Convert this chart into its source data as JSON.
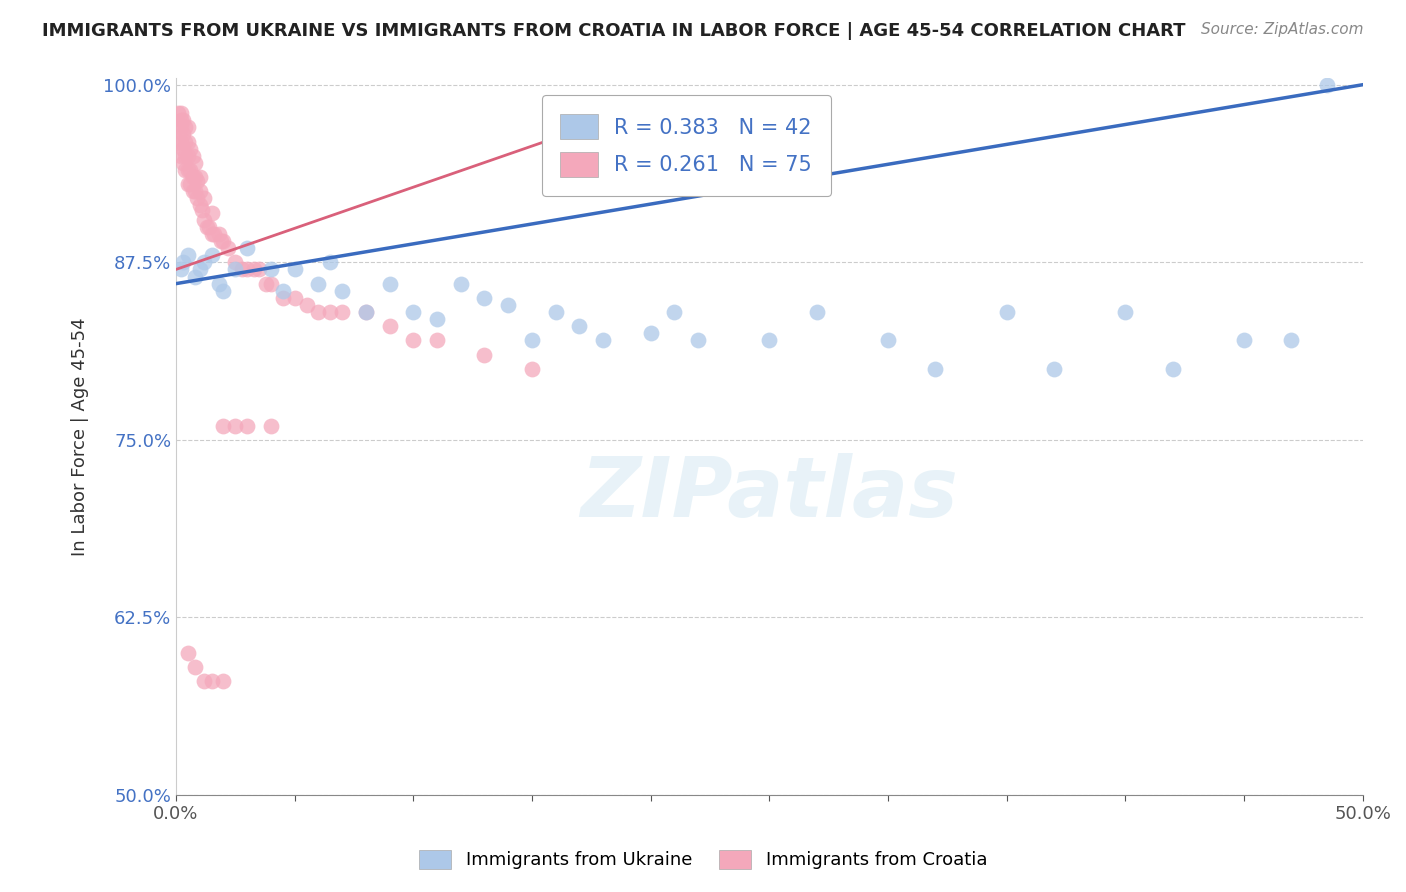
{
  "title": "IMMIGRANTS FROM UKRAINE VS IMMIGRANTS FROM CROATIA IN LABOR FORCE | AGE 45-54 CORRELATION CHART",
  "source": "Source: ZipAtlas.com",
  "ylabel": "In Labor Force | Age 45-54",
  "xlim": [
    0.0,
    0.5
  ],
  "ylim": [
    0.5,
    1.005
  ],
  "xticks": [
    0.0,
    0.05,
    0.1,
    0.15,
    0.2,
    0.25,
    0.3,
    0.35,
    0.4,
    0.45,
    0.5
  ],
  "xtick_labels": [
    "0.0%",
    "",
    "",
    "",
    "",
    "",
    "",
    "",
    "",
    "",
    "50.0%"
  ],
  "yticks": [
    0.5,
    0.625,
    0.75,
    0.875,
    1.0
  ],
  "ytick_labels": [
    "50.0%",
    "62.5%",
    "75.0%",
    "87.5%",
    "100.0%"
  ],
  "ukraine_color": "#adc8e8",
  "croatia_color": "#f4a8bb",
  "ukraine_edge_color": "#adc8e8",
  "croatia_edge_color": "#f4a8bb",
  "ukraine_line_color": "#3a6bbf",
  "croatia_line_color": "#d9607a",
  "ukraine_R": 0.383,
  "ukraine_N": 42,
  "croatia_R": 0.261,
  "croatia_N": 75,
  "legend_label_ukraine": "Immigrants from Ukraine",
  "legend_label_croatia": "Immigrants from Croatia",
  "watermark": "ZIPatlas",
  "ukraine_x": [
    0.002,
    0.003,
    0.005,
    0.008,
    0.01,
    0.012,
    0.015,
    0.018,
    0.02,
    0.025,
    0.03,
    0.04,
    0.045,
    0.05,
    0.06,
    0.065,
    0.07,
    0.08,
    0.09,
    0.1,
    0.11,
    0.12,
    0.13,
    0.14,
    0.15,
    0.16,
    0.17,
    0.18,
    0.2,
    0.21,
    0.22,
    0.25,
    0.27,
    0.3,
    0.32,
    0.35,
    0.37,
    0.4,
    0.42,
    0.45,
    0.47,
    0.485
  ],
  "ukraine_y": [
    0.87,
    0.875,
    0.88,
    0.865,
    0.87,
    0.875,
    0.88,
    0.86,
    0.855,
    0.87,
    0.885,
    0.87,
    0.855,
    0.87,
    0.86,
    0.875,
    0.855,
    0.84,
    0.86,
    0.84,
    0.835,
    0.86,
    0.85,
    0.845,
    0.82,
    0.84,
    0.83,
    0.82,
    0.825,
    0.84,
    0.82,
    0.82,
    0.84,
    0.82,
    0.8,
    0.84,
    0.8,
    0.84,
    0.8,
    0.82,
    0.82,
    1.0
  ],
  "croatia_x": [
    0.001,
    0.001,
    0.001,
    0.002,
    0.002,
    0.002,
    0.002,
    0.002,
    0.003,
    0.003,
    0.003,
    0.003,
    0.004,
    0.004,
    0.004,
    0.004,
    0.005,
    0.005,
    0.005,
    0.005,
    0.005,
    0.006,
    0.006,
    0.006,
    0.007,
    0.007,
    0.007,
    0.008,
    0.008,
    0.008,
    0.009,
    0.009,
    0.01,
    0.01,
    0.01,
    0.011,
    0.012,
    0.012,
    0.013,
    0.014,
    0.015,
    0.015,
    0.016,
    0.018,
    0.019,
    0.02,
    0.022,
    0.025,
    0.028,
    0.03,
    0.033,
    0.035,
    0.038,
    0.04,
    0.045,
    0.05,
    0.055,
    0.06,
    0.065,
    0.07,
    0.08,
    0.09,
    0.1,
    0.11,
    0.13,
    0.15,
    0.02,
    0.025,
    0.03,
    0.04,
    0.005,
    0.008,
    0.012,
    0.015,
    0.02
  ],
  "croatia_y": [
    0.96,
    0.97,
    0.98,
    0.95,
    0.96,
    0.97,
    0.975,
    0.98,
    0.945,
    0.955,
    0.965,
    0.975,
    0.94,
    0.95,
    0.96,
    0.97,
    0.93,
    0.94,
    0.95,
    0.96,
    0.97,
    0.93,
    0.94,
    0.955,
    0.925,
    0.935,
    0.95,
    0.925,
    0.935,
    0.945,
    0.92,
    0.932,
    0.915,
    0.925,
    0.935,
    0.912,
    0.905,
    0.92,
    0.9,
    0.9,
    0.895,
    0.91,
    0.895,
    0.895,
    0.89,
    0.89,
    0.885,
    0.875,
    0.87,
    0.87,
    0.87,
    0.87,
    0.86,
    0.86,
    0.85,
    0.85,
    0.845,
    0.84,
    0.84,
    0.84,
    0.84,
    0.83,
    0.82,
    0.82,
    0.81,
    0.8,
    0.76,
    0.76,
    0.76,
    0.76,
    0.6,
    0.59,
    0.58,
    0.58,
    0.58
  ],
  "ukraine_line_x0": 0.0,
  "ukraine_line_y0": 0.86,
  "ukraine_line_x1": 0.5,
  "ukraine_line_y1": 1.0,
  "croatia_line_x0": 0.0,
  "croatia_line_y0": 0.87,
  "croatia_line_x1": 0.19,
  "croatia_line_y1": 0.98
}
